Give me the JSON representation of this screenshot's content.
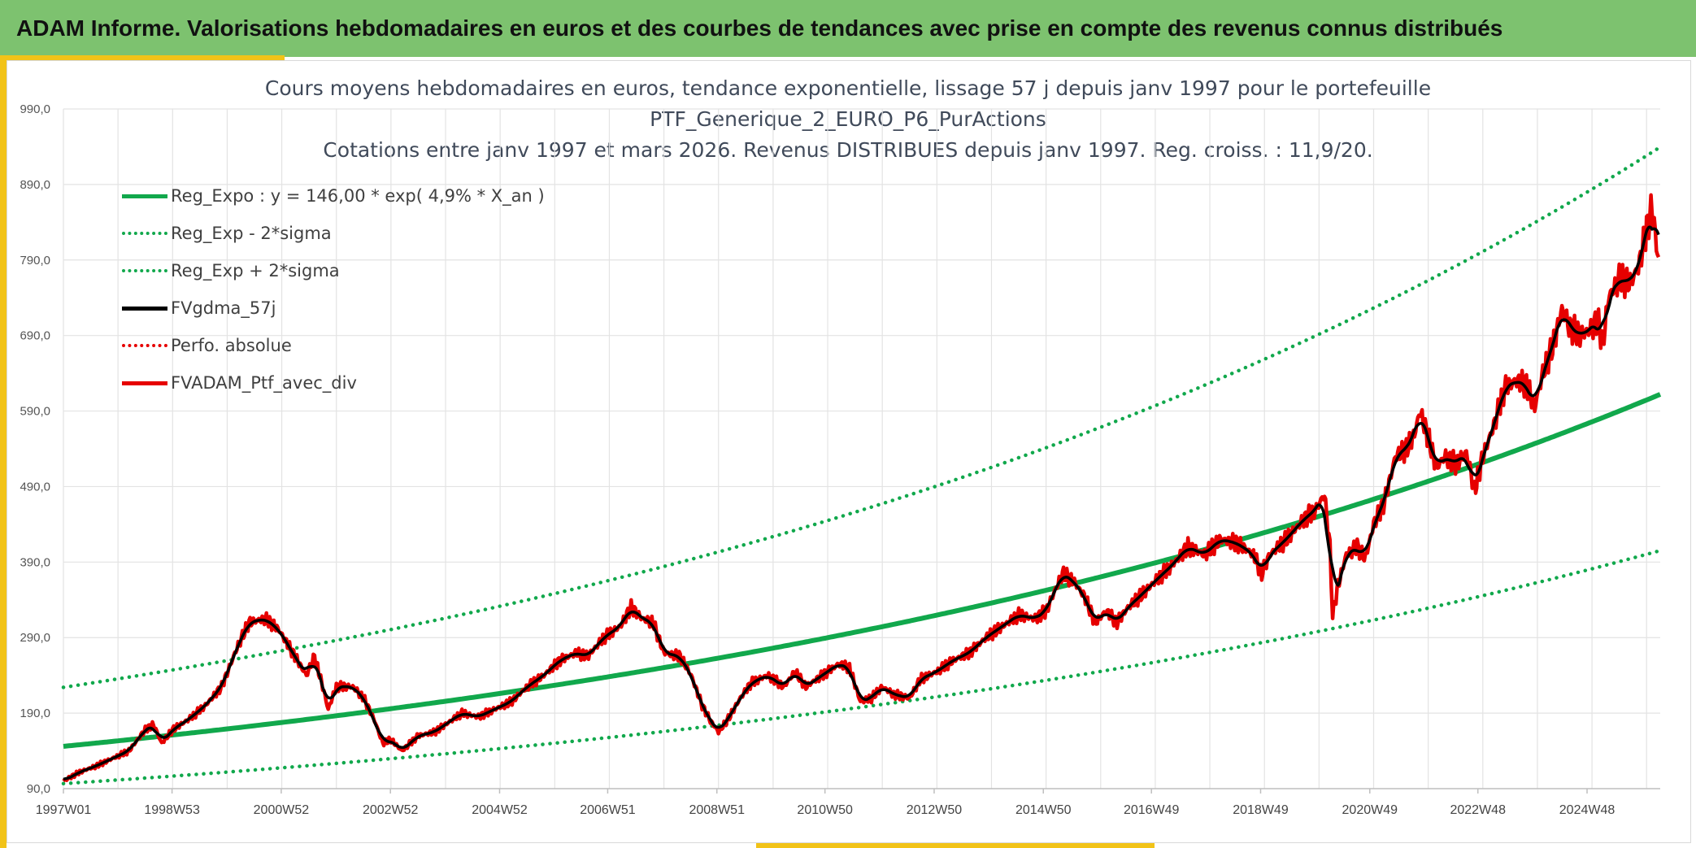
{
  "banner": {
    "title": "ADAM Informe. Valorisations hebdomadaires en euros et des courbes de tendances avec prise en compte des revenus connus distribués"
  },
  "chart_data": {
    "type": "line",
    "title_lines": [
      "Cours moyens hebdomadaires en euros, tendance exponentielle, lissage 57 j depuis janv 1997 pour le portefeuille",
      "PTF_Generique_2_EURO_P6_PurActions",
      "Cotations entre janv 1997 et mars 2026. Revenus DISTRIBUES depuis janv 1997. Reg. croiss. : 11,9/20."
    ],
    "xlabel": "",
    "ylabel": "",
    "ylim": [
      90,
      990
    ],
    "xlim": [
      1997.0,
      2026.25
    ],
    "y_ticks": [
      "90,0",
      "190,0",
      "290,0",
      "390,0",
      "490,0",
      "590,0",
      "690,0",
      "790,0",
      "890,0",
      "990,0"
    ],
    "y_tick_values": [
      90,
      190,
      290,
      390,
      490,
      590,
      690,
      790,
      890,
      990
    ],
    "x_ticks": [
      {
        "label": "1997W01",
        "x": 1997.0
      },
      {
        "label": "1998W53",
        "x": 1998.99
      },
      {
        "label": "2000W52",
        "x": 2000.99
      },
      {
        "label": "2002W52",
        "x": 2002.99
      },
      {
        "label": "2004W52",
        "x": 2004.99
      },
      {
        "label": "2006W51",
        "x": 2006.97
      },
      {
        "label": "2008W51",
        "x": 2008.97
      },
      {
        "label": "2010W50",
        "x": 2010.95
      },
      {
        "label": "2012W50",
        "x": 2012.95
      },
      {
        "label": "2014W50",
        "x": 2014.95
      },
      {
        "label": "2016W49",
        "x": 2016.93
      },
      {
        "label": "2018W49",
        "x": 2018.93
      },
      {
        "label": "2020W49",
        "x": 2020.93
      },
      {
        "label": "2022W48",
        "x": 2022.91
      },
      {
        "label": "2024W48",
        "x": 2024.91
      }
    ],
    "legend_position": "top-left",
    "series": [
      {
        "name": "Reg_Expo : y = 146,00 * exp( 4,9% *  X_an )",
        "color": "#11a84c",
        "style": "solid",
        "formula": {
          "a": 146.0,
          "rate": 0.049,
          "x0": 1997.0,
          "factor": 1.0
        }
      },
      {
        "name": "Reg_Exp - 2*sigma",
        "color": "#11a84c",
        "style": "dotted",
        "formula": {
          "a": 146.0,
          "rate": 0.049,
          "x0": 1997.0,
          "factor": 0.662
        }
      },
      {
        "name": "Reg_Exp + 2*sigma",
        "color": "#11a84c",
        "style": "dotted",
        "formula": {
          "a": 146.0,
          "rate": 0.049,
          "x0": 1997.0,
          "factor": 1.535
        }
      },
      {
        "name": "FVgdma_57j",
        "color": "#000000",
        "style": "solid",
        "smooth_of": "FVADAM_Ptf_avec_div"
      },
      {
        "name": "Perfo. absolue",
        "color": "#e60000",
        "style": "dotted",
        "points": []
      },
      {
        "name": "FVADAM_Ptf_avec_div",
        "color": "#e60000",
        "style": "solid",
        "points": [
          [
            1997.0,
            100
          ],
          [
            1997.3,
            112
          ],
          [
            1997.6,
            120
          ],
          [
            1997.9,
            130
          ],
          [
            1998.2,
            140
          ],
          [
            1998.5,
            168
          ],
          [
            1998.65,
            175
          ],
          [
            1998.8,
            150
          ],
          [
            1999.0,
            168
          ],
          [
            1999.3,
            182
          ],
          [
            1999.6,
            200
          ],
          [
            1999.9,
            225
          ],
          [
            2000.2,
            280
          ],
          [
            2000.4,
            310
          ],
          [
            2000.7,
            315
          ],
          [
            2000.95,
            300
          ],
          [
            2001.2,
            270
          ],
          [
            2001.45,
            240
          ],
          [
            2001.6,
            265
          ],
          [
            2001.75,
            225
          ],
          [
            2001.85,
            195
          ],
          [
            2002.0,
            225
          ],
          [
            2002.3,
            225
          ],
          [
            2002.5,
            210
          ],
          [
            2002.7,
            180
          ],
          [
            2002.85,
            150
          ],
          [
            2003.0,
            155
          ],
          [
            2003.2,
            140
          ],
          [
            2003.5,
            160
          ],
          [
            2003.8,
            165
          ],
          [
            2004.0,
            175
          ],
          [
            2004.3,
            190
          ],
          [
            2004.6,
            185
          ],
          [
            2004.9,
            195
          ],
          [
            2005.2,
            205
          ],
          [
            2005.5,
            225
          ],
          [
            2005.8,
            240
          ],
          [
            2006.1,
            260
          ],
          [
            2006.4,
            270
          ],
          [
            2006.6,
            265
          ],
          [
            2006.9,
            290
          ],
          [
            2007.2,
            305
          ],
          [
            2007.4,
            330
          ],
          [
            2007.6,
            315
          ],
          [
            2007.8,
            310
          ],
          [
            2007.9,
            290
          ],
          [
            2008.0,
            270
          ],
          [
            2008.3,
            265
          ],
          [
            2008.5,
            240
          ],
          [
            2008.7,
            200
          ],
          [
            2008.85,
            180
          ],
          [
            2009.0,
            165
          ],
          [
            2009.2,
            185
          ],
          [
            2009.4,
            210
          ],
          [
            2009.6,
            230
          ],
          [
            2009.9,
            240
          ],
          [
            2010.2,
            225
          ],
          [
            2010.4,
            245
          ],
          [
            2010.6,
            225
          ],
          [
            2010.9,
            240
          ],
          [
            2011.2,
            255
          ],
          [
            2011.4,
            250
          ],
          [
            2011.6,
            205
          ],
          [
            2011.8,
            210
          ],
          [
            2012.0,
            225
          ],
          [
            2012.2,
            215
          ],
          [
            2012.5,
            210
          ],
          [
            2012.7,
            235
          ],
          [
            2013.0,
            245
          ],
          [
            2013.3,
            260
          ],
          [
            2013.6,
            270
          ],
          [
            2013.9,
            290
          ],
          [
            2014.2,
            305
          ],
          [
            2014.5,
            320
          ],
          [
            2014.8,
            315
          ],
          [
            2015.0,
            325
          ],
          [
            2015.3,
            375
          ],
          [
            2015.5,
            365
          ],
          [
            2015.7,
            345
          ],
          [
            2015.9,
            310
          ],
          [
            2016.1,
            325
          ],
          [
            2016.3,
            310
          ],
          [
            2016.5,
            330
          ],
          [
            2016.8,
            350
          ],
          [
            2017.0,
            365
          ],
          [
            2017.3,
            385
          ],
          [
            2017.6,
            410
          ],
          [
            2017.9,
            400
          ],
          [
            2018.2,
            420
          ],
          [
            2018.5,
            415
          ],
          [
            2018.8,
            400
          ],
          [
            2018.95,
            375
          ],
          [
            2019.1,
            400
          ],
          [
            2019.4,
            420
          ],
          [
            2019.7,
            445
          ],
          [
            2019.95,
            460
          ],
          [
            2020.1,
            480
          ],
          [
            2020.2,
            410
          ],
          [
            2020.25,
            320
          ],
          [
            2020.35,
            360
          ],
          [
            2020.5,
            400
          ],
          [
            2020.7,
            410
          ],
          [
            2020.85,
            395
          ],
          [
            2021.0,
            440
          ],
          [
            2021.2,
            470
          ],
          [
            2021.4,
            530
          ],
          [
            2021.6,
            540
          ],
          [
            2021.75,
            560
          ],
          [
            2021.85,
            590
          ],
          [
            2022.0,
            555
          ],
          [
            2022.15,
            515
          ],
          [
            2022.3,
            530
          ],
          [
            2022.5,
            520
          ],
          [
            2022.7,
            535
          ],
          [
            2022.85,
            485
          ],
          [
            2023.0,
            530
          ],
          [
            2023.2,
            570
          ],
          [
            2023.4,
            620
          ],
          [
            2023.6,
            630
          ],
          [
            2023.8,
            625
          ],
          [
            2023.95,
            595
          ],
          [
            2024.1,
            640
          ],
          [
            2024.3,
            680
          ],
          [
            2024.45,
            725
          ],
          [
            2024.6,
            700
          ],
          [
            2024.8,
            690
          ],
          [
            2025.0,
            700
          ],
          [
            2025.1,
            710
          ],
          [
            2025.2,
            680
          ],
          [
            2025.3,
            740
          ],
          [
            2025.5,
            765
          ],
          [
            2025.7,
            760
          ],
          [
            2025.85,
            780
          ],
          [
            2026.0,
            830
          ],
          [
            2026.1,
            860
          ],
          [
            2026.18,
            810
          ],
          [
            2026.22,
            790
          ]
        ]
      }
    ]
  }
}
